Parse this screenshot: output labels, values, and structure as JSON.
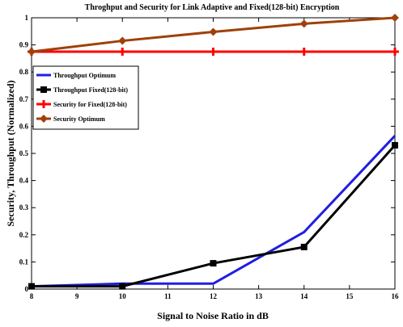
{
  "chart_data": {
    "type": "line",
    "title": "Throghput and Security for Link Adaptive and Fixed(128-bit) Encryption",
    "xlabel": "Signal to Noise Ratio in dB",
    "ylabel": "Security, Throughput (Normalized)",
    "xlim": [
      8,
      16
    ],
    "ylim": [
      0,
      1
    ],
    "xticks": [
      8,
      9,
      10,
      11,
      12,
      13,
      14,
      15,
      16
    ],
    "yticks": [
      0,
      0.1,
      0.2,
      0.3,
      0.4,
      0.5,
      0.6,
      0.7,
      0.8,
      0.9,
      1
    ],
    "grid": false,
    "legend_position": "upper-left",
    "series": [
      {
        "name": "Throughput Optimum",
        "color": "#1f1fe0",
        "marker": "none",
        "x": [
          8,
          10,
          12,
          14,
          16
        ],
        "y": [
          0.01,
          0.02,
          0.02,
          0.21,
          0.565
        ]
      },
      {
        "name": "Throughput Fixed(128-bit)",
        "color": "#000000",
        "marker": "square",
        "x": [
          8,
          10,
          12,
          14,
          16
        ],
        "y": [
          0.01,
          0.01,
          0.095,
          0.155,
          0.53
        ]
      },
      {
        "name": "Security for Fixed(128-bit)",
        "color": "#ff0000",
        "marker": "plus",
        "x": [
          8,
          10,
          12,
          14,
          16
        ],
        "y": [
          0.875,
          0.875,
          0.875,
          0.875,
          0.875
        ]
      },
      {
        "name": "Security Optimum",
        "color": "#a0400a",
        "marker": "diamond",
        "x": [
          8,
          10,
          12,
          14,
          16
        ],
        "y": [
          0.875,
          0.915,
          0.948,
          0.978,
          1.0
        ]
      }
    ]
  }
}
